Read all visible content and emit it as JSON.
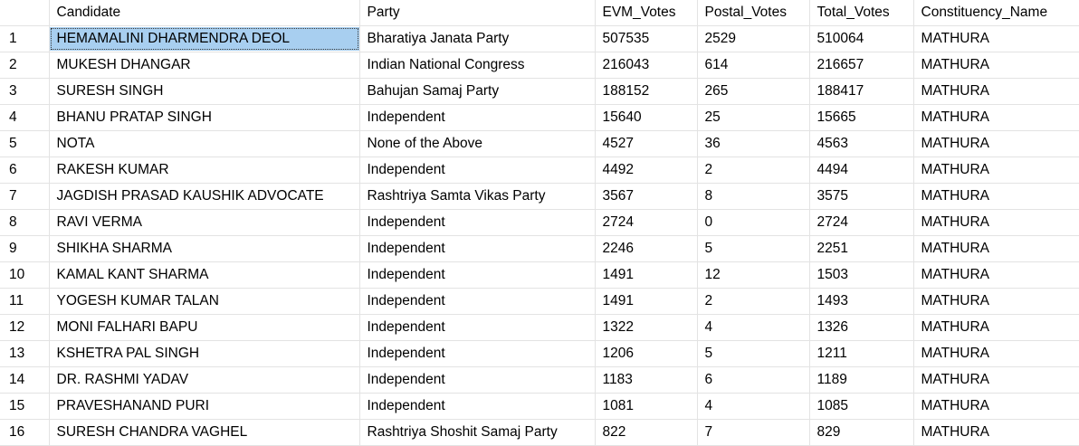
{
  "grid": {
    "columns": [
      "",
      "Candidate",
      "Party",
      "EVM_Votes",
      "Postal_Votes",
      "Total_Votes",
      "Constituency_Name"
    ],
    "selected": {
      "row": 0,
      "col": 1
    },
    "rows": [
      [
        "1",
        "HEMAMALINI DHARMENDRA DEOL",
        "Bharatiya Janata Party",
        "507535",
        "2529",
        "510064",
        "MATHURA"
      ],
      [
        "2",
        "MUKESH DHANGAR",
        "Indian National Congress",
        "216043",
        "614",
        "216657",
        "MATHURA"
      ],
      [
        "3",
        "SURESH SINGH",
        "Bahujan Samaj Party",
        "188152",
        "265",
        "188417",
        "MATHURA"
      ],
      [
        "4",
        "BHANU PRATAP SINGH",
        "Independent",
        "15640",
        "25",
        "15665",
        "MATHURA"
      ],
      [
        "5",
        "NOTA",
        "None of the Above",
        "4527",
        "36",
        "4563",
        "MATHURA"
      ],
      [
        "6",
        "RAKESH KUMAR",
        "Independent",
        "4492",
        "2",
        "4494",
        "MATHURA"
      ],
      [
        "7",
        "JAGDISH PRASAD KAUSHIK ADVOCATE",
        "Rashtriya Samta Vikas Party",
        "3567",
        "8",
        "3575",
        "MATHURA"
      ],
      [
        "8",
        "RAVI VERMA",
        "Independent",
        "2724",
        "0",
        "2724",
        "MATHURA"
      ],
      [
        "9",
        "SHIKHA SHARMA",
        "Independent",
        "2246",
        "5",
        "2251",
        "MATHURA"
      ],
      [
        "10",
        "KAMAL KANT SHARMA",
        "Independent",
        "1491",
        "12",
        "1503",
        "MATHURA"
      ],
      [
        "11",
        "YOGESH KUMAR TALAN",
        "Independent",
        "1491",
        "2",
        "1493",
        "MATHURA"
      ],
      [
        "12",
        "MONI FALHARI BAPU",
        "Independent",
        "1322",
        "4",
        "1326",
        "MATHURA"
      ],
      [
        "13",
        "KSHETRA PAL SINGH",
        "Independent",
        "1206",
        "5",
        "1211",
        "MATHURA"
      ],
      [
        "14",
        "DR. RASHMI YADAV",
        "Independent",
        "1183",
        "6",
        "1189",
        "MATHURA"
      ],
      [
        "15",
        "PRAVESHANAND PURI",
        "Independent",
        "1081",
        "4",
        "1085",
        "MATHURA"
      ],
      [
        "16",
        "SURESH CHANDRA VAGHEL",
        "Rashtriya Shoshit Samaj Party",
        "822",
        "7",
        "829",
        "MATHURA"
      ]
    ]
  }
}
